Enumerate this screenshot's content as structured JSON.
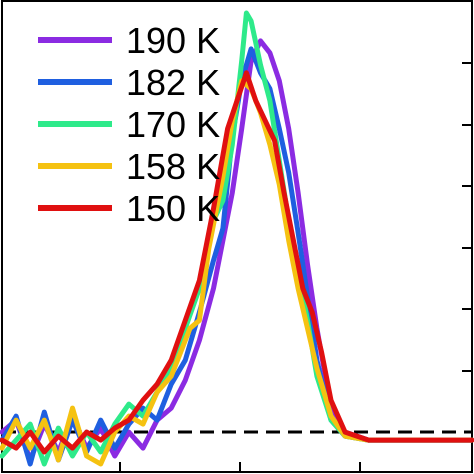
{
  "chart_data": {
    "type": "line",
    "title": "",
    "xlabel": "",
    "ylabel": "",
    "legend_position": "top-left",
    "baseline_style": "black dashed horizontal line at y = 0",
    "xlim": [
      0,
      1
    ],
    "ylim": [
      -0.08,
      1.1
    ],
    "grid": false,
    "x_ticks_visible_labels": false,
    "y_ticks_visible_labels": false,
    "series": [
      {
        "name": "190 K",
        "color": "#8B2BE2",
        "points": [
          [
            0.0,
            0.02
          ],
          [
            0.03,
            0.05
          ],
          [
            0.06,
            -0.05
          ],
          [
            0.09,
            0.04
          ],
          [
            0.12,
            -0.03
          ],
          [
            0.15,
            0.06
          ],
          [
            0.18,
            -0.02
          ],
          [
            0.21,
            0.03
          ],
          [
            0.24,
            -0.04
          ],
          [
            0.27,
            0.02
          ],
          [
            0.3,
            -0.02
          ],
          [
            0.33,
            0.05
          ],
          [
            0.36,
            0.08
          ],
          [
            0.39,
            0.15
          ],
          [
            0.42,
            0.25
          ],
          [
            0.45,
            0.38
          ],
          [
            0.47,
            0.5
          ],
          [
            0.49,
            0.62
          ],
          [
            0.51,
            0.78
          ],
          [
            0.53,
            0.95
          ],
          [
            0.55,
            1.0
          ],
          [
            0.57,
            0.97
          ],
          [
            0.59,
            0.9
          ],
          [
            0.61,
            0.78
          ],
          [
            0.63,
            0.62
          ],
          [
            0.65,
            0.44
          ],
          [
            0.67,
            0.28
          ],
          [
            0.7,
            0.08
          ],
          [
            0.73,
            0.02
          ],
          [
            0.78,
            0.0
          ],
          [
            0.85,
            0.0
          ],
          [
            1.0,
            0.0
          ]
        ]
      },
      {
        "name": "182 K",
        "color": "#1F5FE0",
        "points": [
          [
            0.0,
            0.0
          ],
          [
            0.03,
            0.06
          ],
          [
            0.06,
            -0.06
          ],
          [
            0.09,
            0.07
          ],
          [
            0.12,
            -0.05
          ],
          [
            0.15,
            0.05
          ],
          [
            0.18,
            -0.03
          ],
          [
            0.21,
            0.05
          ],
          [
            0.24,
            -0.02
          ],
          [
            0.27,
            0.04
          ],
          [
            0.3,
            0.08
          ],
          [
            0.33,
            0.05
          ],
          [
            0.36,
            0.14
          ],
          [
            0.39,
            0.2
          ],
          [
            0.42,
            0.32
          ],
          [
            0.45,
            0.45
          ],
          [
            0.47,
            0.53
          ],
          [
            0.49,
            0.76
          ],
          [
            0.51,
            0.9
          ],
          [
            0.53,
            0.98
          ],
          [
            0.55,
            0.92
          ],
          [
            0.57,
            0.88
          ],
          [
            0.59,
            0.78
          ],
          [
            0.61,
            0.67
          ],
          [
            0.63,
            0.52
          ],
          [
            0.65,
            0.36
          ],
          [
            0.67,
            0.2
          ],
          [
            0.7,
            0.05
          ],
          [
            0.73,
            0.01
          ],
          [
            0.78,
            0.0
          ],
          [
            0.85,
            0.0
          ],
          [
            1.0,
            0.0
          ]
        ]
      },
      {
        "name": "170 K",
        "color": "#2EEA8A",
        "points": [
          [
            0.0,
            -0.04
          ],
          [
            0.03,
            0.0
          ],
          [
            0.06,
            0.04
          ],
          [
            0.09,
            -0.06
          ],
          [
            0.12,
            0.03
          ],
          [
            0.15,
            -0.04
          ],
          [
            0.18,
            0.02
          ],
          [
            0.21,
            -0.03
          ],
          [
            0.24,
            0.04
          ],
          [
            0.27,
            0.09
          ],
          [
            0.3,
            0.06
          ],
          [
            0.33,
            0.12
          ],
          [
            0.36,
            0.18
          ],
          [
            0.39,
            0.28
          ],
          [
            0.42,
            0.38
          ],
          [
            0.45,
            0.55
          ],
          [
            0.47,
            0.6
          ],
          [
            0.49,
            0.74
          ],
          [
            0.51,
            0.95
          ],
          [
            0.52,
            1.07
          ],
          [
            0.53,
            1.05
          ],
          [
            0.55,
            0.94
          ],
          [
            0.57,
            0.85
          ],
          [
            0.59,
            0.7
          ],
          [
            0.61,
            0.55
          ],
          [
            0.63,
            0.42
          ],
          [
            0.65,
            0.3
          ],
          [
            0.67,
            0.16
          ],
          [
            0.7,
            0.05
          ],
          [
            0.73,
            0.01
          ],
          [
            0.78,
            0.0
          ],
          [
            0.85,
            0.0
          ],
          [
            1.0,
            0.0
          ]
        ]
      },
      {
        "name": "158 K",
        "color": "#F5C211",
        "points": [
          [
            0.0,
            -0.02
          ],
          [
            0.03,
            0.05
          ],
          [
            0.06,
            -0.02
          ],
          [
            0.09,
            0.05
          ],
          [
            0.12,
            -0.05
          ],
          [
            0.15,
            0.08
          ],
          [
            0.18,
            -0.04
          ],
          [
            0.21,
            -0.06
          ],
          [
            0.24,
            0.02
          ],
          [
            0.27,
            0.06
          ],
          [
            0.3,
            0.04
          ],
          [
            0.33,
            0.12
          ],
          [
            0.36,
            0.16
          ],
          [
            0.38,
            0.22
          ],
          [
            0.4,
            0.28
          ],
          [
            0.42,
            0.3
          ],
          [
            0.44,
            0.48
          ],
          [
            0.47,
            0.66
          ],
          [
            0.49,
            0.8
          ],
          [
            0.51,
            0.9
          ],
          [
            0.53,
            0.88
          ],
          [
            0.55,
            0.82
          ],
          [
            0.57,
            0.74
          ],
          [
            0.59,
            0.64
          ],
          [
            0.61,
            0.5
          ],
          [
            0.63,
            0.38
          ],
          [
            0.65,
            0.28
          ],
          [
            0.67,
            0.18
          ],
          [
            0.7,
            0.06
          ],
          [
            0.73,
            0.01
          ],
          [
            0.78,
            0.0
          ],
          [
            0.85,
            0.0
          ],
          [
            1.0,
            0.0
          ]
        ]
      },
      {
        "name": "150 K",
        "color": "#E01010",
        "points": [
          [
            0.0,
            0.0
          ],
          [
            0.03,
            -0.02
          ],
          [
            0.06,
            0.02
          ],
          [
            0.09,
            -0.03
          ],
          [
            0.12,
            0.01
          ],
          [
            0.15,
            -0.02
          ],
          [
            0.18,
            0.02
          ],
          [
            0.21,
            0.0
          ],
          [
            0.24,
            0.03
          ],
          [
            0.27,
            0.05
          ],
          [
            0.3,
            0.1
          ],
          [
            0.33,
            0.14
          ],
          [
            0.36,
            0.2
          ],
          [
            0.39,
            0.3
          ],
          [
            0.42,
            0.4
          ],
          [
            0.45,
            0.58
          ],
          [
            0.48,
            0.78
          ],
          [
            0.5,
            0.85
          ],
          [
            0.52,
            0.92
          ],
          [
            0.54,
            0.85
          ],
          [
            0.56,
            0.8
          ],
          [
            0.58,
            0.75
          ],
          [
            0.6,
            0.62
          ],
          [
            0.62,
            0.5
          ],
          [
            0.64,
            0.38
          ],
          [
            0.66,
            0.32
          ],
          [
            0.68,
            0.22
          ],
          [
            0.7,
            0.1
          ],
          [
            0.73,
            0.02
          ],
          [
            0.78,
            0.0
          ],
          [
            0.85,
            0.0
          ],
          [
            1.0,
            0.0
          ]
        ]
      }
    ]
  }
}
